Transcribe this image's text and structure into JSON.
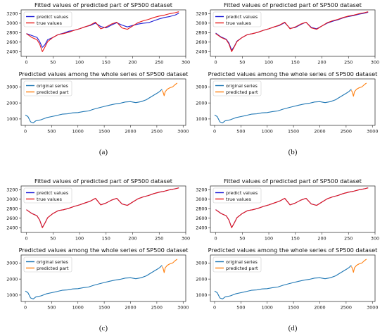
{
  "figure": {
    "captions": [
      "(a)",
      "(b)",
      "(c)",
      "(d)"
    ]
  },
  "colors": {
    "predict": "#1f1fd6",
    "true": "#e8191a",
    "original": "#1f77b4",
    "predicted_part": "#ff7f0e",
    "axis": "#222222"
  },
  "chart_data": [
    {
      "panel": "(a)",
      "subplot": "top",
      "type": "line",
      "title": "Fitted values of predicted part of SP500 dataset",
      "xlim": [
        -10,
        300
      ],
      "ylim": [
        2300,
        3280
      ],
      "xticks": [
        0,
        50,
        100,
        150,
        200,
        250,
        300
      ],
      "yticks": [
        2400,
        2600,
        2800,
        3000,
        3200
      ],
      "legend": "top-left",
      "x": [
        0,
        10,
        20,
        25,
        30,
        35,
        40,
        50,
        60,
        70,
        80,
        90,
        100,
        110,
        120,
        130,
        140,
        150,
        160,
        170,
        180,
        190,
        200,
        210,
        220,
        230,
        240,
        250,
        260,
        270,
        280,
        287
      ],
      "series": [
        {
          "name": "predict values",
          "color_key": "predict",
          "values": [
            2780,
            2740,
            2700,
            2610,
            2490,
            2550,
            2650,
            2700,
            2760,
            2790,
            2830,
            2850,
            2880,
            2920,
            2950,
            3000,
            2930,
            2900,
            2960,
            3010,
            2960,
            2920,
            2950,
            2980,
            3000,
            3010,
            3050,
            3090,
            3120,
            3140,
            3170,
            3210
          ]
        },
        {
          "name": "true values",
          "color_key": "true",
          "values": [
            2780,
            2700,
            2650,
            2560,
            2400,
            2500,
            2610,
            2700,
            2760,
            2780,
            2810,
            2850,
            2880,
            2920,
            2960,
            3020,
            2880,
            2920,
            2980,
            3020,
            2900,
            2870,
            2940,
            3010,
            3050,
            3080,
            3120,
            3150,
            3170,
            3200,
            3220,
            3240
          ]
        }
      ]
    },
    {
      "panel": "(a)",
      "subplot": "bottom",
      "type": "line",
      "title": "Predicted values among the whole series of SP500 dataset",
      "xlim": [
        -80,
        3050
      ],
      "ylim": [
        600,
        3500
      ],
      "xticks": [
        0,
        500,
        1000,
        1500,
        2000,
        2500,
        3000
      ],
      "yticks": [
        1000,
        2000,
        3000
      ],
      "legend": "top-left",
      "series": [
        {
          "name": "original series",
          "color_key": "original",
          "x": [
            0,
            50,
            100,
            150,
            200,
            300,
            400,
            500,
            600,
            700,
            800,
            900,
            1000,
            1100,
            1200,
            1300,
            1400,
            1500,
            1600,
            1700,
            1800,
            1900,
            2000,
            2100,
            2200,
            2300,
            2400,
            2500,
            2550,
            2600
          ],
          "values": [
            1250,
            1150,
            820,
            760,
            880,
            950,
            1080,
            1150,
            1220,
            1300,
            1320,
            1380,
            1400,
            1460,
            1500,
            1610,
            1700,
            1780,
            1860,
            1930,
            1980,
            2060,
            2080,
            2020,
            2080,
            2200,
            2400,
            2600,
            2700,
            2860
          ]
        },
        {
          "name": "predicted part",
          "color_key": "predicted_part",
          "x": [
            2600,
            2620,
            2640,
            2660,
            2700,
            2750,
            2800,
            2850,
            2887
          ],
          "values": [
            2780,
            2650,
            2450,
            2700,
            2860,
            2950,
            3000,
            3150,
            3240
          ]
        }
      ]
    },
    {
      "panel": "(b)",
      "subplot": "top",
      "type": "line",
      "title": "Fitted values of predicted part of SP500 dataset",
      "xlim": [
        -10,
        300
      ],
      "ylim": [
        2300,
        3280
      ],
      "xticks": [
        0,
        50,
        100,
        150,
        200,
        250,
        300
      ],
      "yticks": [
        2400,
        2600,
        2800,
        3000,
        3200
      ],
      "legend": "top-left",
      "x": [
        0,
        10,
        20,
        25,
        30,
        35,
        40,
        50,
        60,
        70,
        80,
        90,
        100,
        110,
        120,
        130,
        140,
        150,
        160,
        170,
        180,
        190,
        200,
        210,
        220,
        230,
        240,
        250,
        260,
        270,
        280,
        287
      ],
      "series": [
        {
          "name": "predict values",
          "color_key": "predict",
          "values": [
            2790,
            2710,
            2660,
            2580,
            2430,
            2510,
            2620,
            2700,
            2760,
            2780,
            2810,
            2850,
            2880,
            2920,
            2950,
            3010,
            2890,
            2910,
            2970,
            3020,
            2910,
            2880,
            2940,
            3000,
            3040,
            3070,
            3110,
            3140,
            3160,
            3190,
            3210,
            3230
          ]
        },
        {
          "name": "true values",
          "color_key": "true",
          "values": [
            2780,
            2700,
            2650,
            2560,
            2400,
            2500,
            2610,
            2700,
            2760,
            2780,
            2810,
            2850,
            2880,
            2920,
            2960,
            3020,
            2880,
            2920,
            2980,
            3020,
            2900,
            2870,
            2940,
            3010,
            3050,
            3080,
            3120,
            3150,
            3170,
            3200,
            3220,
            3240
          ]
        }
      ]
    },
    {
      "panel": "(b)",
      "subplot": "bottom",
      "type": "line",
      "title": "Predicted values among the whole series of SP500 dataset",
      "xlim": [
        -80,
        3050
      ],
      "ylim": [
        600,
        3500
      ],
      "xticks": [
        0,
        500,
        1000,
        1500,
        2000,
        2500,
        3000
      ],
      "yticks": [
        1000,
        2000,
        3000
      ],
      "legend": "top-left",
      "series": [
        {
          "name": "original series",
          "color_key": "original",
          "x": [
            0,
            50,
            100,
            150,
            200,
            300,
            400,
            500,
            600,
            700,
            800,
            900,
            1000,
            1100,
            1200,
            1300,
            1400,
            1500,
            1600,
            1700,
            1800,
            1900,
            2000,
            2100,
            2200,
            2300,
            2400,
            2500,
            2550,
            2600
          ],
          "values": [
            1250,
            1150,
            820,
            760,
            880,
            950,
            1080,
            1150,
            1220,
            1300,
            1320,
            1380,
            1400,
            1460,
            1500,
            1610,
            1700,
            1780,
            1860,
            1930,
            1980,
            2060,
            2080,
            2020,
            2080,
            2200,
            2400,
            2600,
            2700,
            2860
          ]
        },
        {
          "name": "predicted part",
          "color_key": "predicted_part",
          "x": [
            2600,
            2620,
            2640,
            2660,
            2700,
            2750,
            2800,
            2850,
            2887
          ],
          "values": [
            2780,
            2650,
            2420,
            2700,
            2860,
            2950,
            3000,
            3150,
            3240
          ]
        }
      ]
    },
    {
      "panel": "(c)",
      "subplot": "top",
      "type": "line",
      "title": "Fitted values of predicted part of SP500 dataset",
      "xlim": [
        -10,
        300
      ],
      "ylim": [
        2300,
        3280
      ],
      "xticks": [
        0,
        50,
        100,
        150,
        200,
        250,
        300
      ],
      "yticks": [
        2400,
        2600,
        2800,
        3000,
        3200
      ],
      "legend": "top-left",
      "x": [
        0,
        10,
        20,
        25,
        30,
        35,
        40,
        50,
        60,
        70,
        80,
        90,
        100,
        110,
        120,
        130,
        140,
        150,
        160,
        170,
        180,
        190,
        200,
        210,
        220,
        230,
        240,
        250,
        260,
        270,
        280,
        287
      ],
      "series": [
        {
          "name": "predict values",
          "color_key": "predict",
          "values": [
            2780,
            2702,
            2652,
            2562,
            2405,
            2502,
            2612,
            2700,
            2760,
            2780,
            2810,
            2850,
            2880,
            2920,
            2958,
            3018,
            2882,
            2920,
            2980,
            3020,
            2902,
            2872,
            2940,
            3010,
            3050,
            3080,
            3120,
            3150,
            3170,
            3200,
            3220,
            3240
          ]
        },
        {
          "name": "true values",
          "color_key": "true",
          "values": [
            2780,
            2700,
            2650,
            2560,
            2400,
            2500,
            2610,
            2700,
            2760,
            2780,
            2810,
            2850,
            2880,
            2920,
            2960,
            3020,
            2880,
            2920,
            2980,
            3020,
            2900,
            2870,
            2940,
            3010,
            3050,
            3080,
            3120,
            3150,
            3170,
            3200,
            3220,
            3240
          ]
        }
      ]
    },
    {
      "panel": "(c)",
      "subplot": "bottom",
      "type": "line",
      "title": "Predicted values among the whole series of SP500 dataset",
      "xlim": [
        -80,
        3050
      ],
      "ylim": [
        600,
        3500
      ],
      "xticks": [
        0,
        500,
        1000,
        1500,
        2000,
        2500,
        3000
      ],
      "yticks": [
        1000,
        2000,
        3000
      ],
      "legend": "top-left",
      "series": [
        {
          "name": "original series",
          "color_key": "original",
          "x": [
            0,
            50,
            100,
            150,
            200,
            300,
            400,
            500,
            600,
            700,
            800,
            900,
            1000,
            1100,
            1200,
            1300,
            1400,
            1500,
            1600,
            1700,
            1800,
            1900,
            2000,
            2100,
            2200,
            2300,
            2400,
            2500,
            2550,
            2600
          ],
          "values": [
            1250,
            1150,
            820,
            760,
            880,
            950,
            1080,
            1150,
            1220,
            1300,
            1320,
            1380,
            1400,
            1460,
            1500,
            1610,
            1700,
            1780,
            1860,
            1930,
            1980,
            2060,
            2080,
            2020,
            2080,
            2200,
            2400,
            2600,
            2700,
            2860
          ]
        },
        {
          "name": "predicted part",
          "color_key": "predicted_part",
          "x": [
            2600,
            2620,
            2640,
            2660,
            2700,
            2750,
            2800,
            2850,
            2887
          ],
          "values": [
            2780,
            2650,
            2400,
            2700,
            2860,
            2950,
            3000,
            3150,
            3240
          ]
        }
      ]
    },
    {
      "panel": "(d)",
      "subplot": "top",
      "type": "line",
      "title": "Fitted values of predicted part of SP500 dataset",
      "xlim": [
        -10,
        300
      ],
      "ylim": [
        2300,
        3280
      ],
      "xticks": [
        0,
        50,
        100,
        150,
        200,
        250,
        300
      ],
      "yticks": [
        2400,
        2600,
        2800,
        3000,
        3200
      ],
      "legend": "top-left",
      "x": [
        0,
        10,
        20,
        25,
        30,
        35,
        40,
        50,
        60,
        70,
        80,
        90,
        100,
        110,
        120,
        130,
        140,
        150,
        160,
        170,
        180,
        190,
        200,
        210,
        220,
        230,
        240,
        250,
        260,
        270,
        280,
        287
      ],
      "series": [
        {
          "name": "predict values",
          "color_key": "predict",
          "values": [
            2781,
            2701,
            2651,
            2561,
            2402,
            2501,
            2611,
            2700,
            2760,
            2780,
            2810,
            2850,
            2880,
            2920,
            2959,
            3019,
            2881,
            2920,
            2980,
            3020,
            2901,
            2871,
            2940,
            3010,
            3050,
            3080,
            3120,
            3150,
            3170,
            3200,
            3220,
            3240
          ]
        },
        {
          "name": "true values",
          "color_key": "true",
          "values": [
            2780,
            2700,
            2650,
            2560,
            2400,
            2500,
            2610,
            2700,
            2760,
            2780,
            2810,
            2850,
            2880,
            2920,
            2960,
            3020,
            2880,
            2920,
            2980,
            3020,
            2900,
            2870,
            2940,
            3010,
            3050,
            3080,
            3120,
            3150,
            3170,
            3200,
            3220,
            3240
          ]
        }
      ]
    },
    {
      "panel": "(d)",
      "subplot": "bottom",
      "type": "line",
      "title": "Predicted values among the whole series of SP500 dataset",
      "xlim": [
        -80,
        3050
      ],
      "ylim": [
        600,
        3500
      ],
      "xticks": [
        0,
        500,
        1000,
        1500,
        2000,
        2500,
        3000
      ],
      "yticks": [
        1000,
        2000,
        3000
      ],
      "legend": "top-left",
      "series": [
        {
          "name": "original series",
          "color_key": "original",
          "x": [
            0,
            50,
            100,
            150,
            200,
            300,
            400,
            500,
            600,
            700,
            800,
            900,
            1000,
            1100,
            1200,
            1300,
            1400,
            1500,
            1600,
            1700,
            1800,
            1900,
            2000,
            2100,
            2200,
            2300,
            2400,
            2500,
            2550,
            2600
          ],
          "values": [
            1250,
            1150,
            820,
            760,
            880,
            950,
            1080,
            1150,
            1220,
            1300,
            1320,
            1380,
            1400,
            1460,
            1500,
            1610,
            1700,
            1780,
            1860,
            1930,
            1980,
            2060,
            2080,
            2020,
            2080,
            2200,
            2400,
            2600,
            2700,
            2860
          ]
        },
        {
          "name": "predicted part",
          "color_key": "predicted_part",
          "x": [
            2600,
            2620,
            2640,
            2660,
            2700,
            2750,
            2800,
            2850,
            2887
          ],
          "values": [
            2780,
            2650,
            2420,
            2700,
            2860,
            2950,
            3000,
            3150,
            3240
          ]
        }
      ]
    }
  ]
}
